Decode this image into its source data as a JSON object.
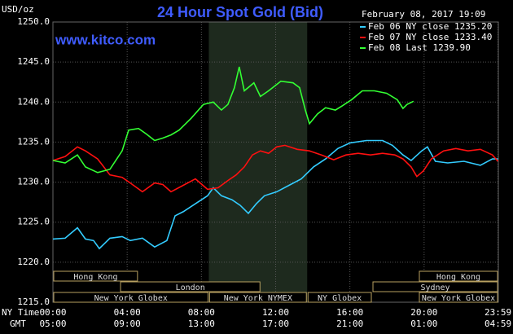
{
  "chart_data": {
    "type": "line",
    "title": "24 Hour Spot Gold (Bid)",
    "y_unit_label": "USD/oz",
    "timestamp": "February 08, 2017 19:09",
    "watermark": "www.kitco.com",
    "x_axis_labels": [
      "NY Time",
      "GMT"
    ],
    "xlim": [
      0,
      24
    ],
    "xticks": [
      {
        "value": 0,
        "label": "00:00"
      },
      {
        "value": 4,
        "label": "04:00"
      },
      {
        "value": 8,
        "label": "08:00"
      },
      {
        "value": 12,
        "label": "12:00"
      },
      {
        "value": 16,
        "label": "16:00"
      },
      {
        "value": 20,
        "label": "20:00"
      },
      {
        "value": 23.98,
        "label": "23:59"
      }
    ],
    "xticks_gmt": [
      "05:00",
      "09:00",
      "13:00",
      "17:00",
      "21:00",
      "01:00",
      "04:59"
    ],
    "ylim": [
      1215,
      1250
    ],
    "yticks": [
      {
        "value": 1215,
        "label": "1215.0"
      },
      {
        "value": 1220,
        "label": "1220.0"
      },
      {
        "value": 1225,
        "label": "1225.0"
      },
      {
        "value": 1230,
        "label": "1230.0"
      },
      {
        "value": 1235,
        "label": "1235.0"
      },
      {
        "value": 1240,
        "label": "1240.0"
      },
      {
        "value": 1245,
        "label": "1245.0"
      },
      {
        "value": 1250,
        "label": "1250.0"
      }
    ],
    "grid": true,
    "legend": "top-right",
    "series": [
      {
        "name": "Feb 06 NY close 1235.20",
        "color": "#33ccff",
        "x": [
          0,
          0.66,
          1.32,
          1.75,
          2.19,
          2.5,
          3.07,
          3.73,
          4.17,
          4.82,
          5.48,
          6.14,
          6.58,
          7.02,
          7.68,
          8.33,
          8.64,
          9.08,
          9.65,
          10.09,
          10.53,
          10.96,
          11.4,
          12.06,
          12.72,
          13.38,
          14.04,
          14.69,
          15.35,
          16.01,
          16.89,
          17.76,
          18.29,
          18.86,
          19.3,
          19.87,
          20.18,
          20.61,
          21.27,
          22.15,
          23.03,
          23.68,
          23.98
        ],
        "values": [
          1222.9,
          1223.0,
          1224.3,
          1222.9,
          1222.7,
          1221.7,
          1223.0,
          1223.2,
          1222.7,
          1223.0,
          1221.9,
          1222.7,
          1225.8,
          1226.3,
          1227.3,
          1228.3,
          1229.3,
          1228.3,
          1227.8,
          1227.1,
          1226.1,
          1227.3,
          1228.3,
          1228.8,
          1229.6,
          1230.4,
          1231.9,
          1232.9,
          1234.2,
          1234.9,
          1235.2,
          1235.2,
          1234.6,
          1233.4,
          1232.7,
          1233.9,
          1234.4,
          1232.6,
          1232.4,
          1232.6,
          1232.1,
          1232.9,
          1232.9
        ]
      },
      {
        "name": "Feb 07 NY close 1233.40",
        "color": "#ff1010",
        "x": [
          0,
          0.66,
          1.32,
          1.75,
          2.41,
          3.07,
          3.73,
          4.17,
          4.82,
          5.48,
          5.92,
          6.36,
          7.02,
          7.68,
          8.33,
          8.9,
          9.43,
          9.87,
          10.31,
          10.75,
          11.18,
          11.62,
          12.06,
          12.5,
          13.16,
          13.82,
          14.47,
          15.13,
          15.79,
          16.45,
          17.11,
          17.76,
          18.42,
          18.86,
          19.3,
          19.61,
          19.96,
          20.39,
          21.05,
          21.71,
          22.37,
          23.03,
          23.68,
          23.98
        ],
        "values": [
          1232.7,
          1233.2,
          1234.4,
          1233.9,
          1232.9,
          1230.9,
          1230.6,
          1229.9,
          1228.8,
          1229.9,
          1229.7,
          1228.8,
          1229.6,
          1230.4,
          1229.1,
          1229.3,
          1230.2,
          1230.9,
          1231.9,
          1233.4,
          1233.9,
          1233.6,
          1234.4,
          1234.6,
          1234.1,
          1233.9,
          1233.4,
          1232.8,
          1233.4,
          1233.6,
          1233.4,
          1233.6,
          1233.4,
          1232.9,
          1231.9,
          1230.7,
          1231.4,
          1232.9,
          1233.9,
          1234.2,
          1233.9,
          1234.1,
          1233.4,
          1232.6
        ]
      },
      {
        "name": "Feb 08 Last 1239.90",
        "color": "#33ff33",
        "x": [
          0,
          0.66,
          1.32,
          1.75,
          2.41,
          3.07,
          3.73,
          4.08,
          4.61,
          5.04,
          5.48,
          5.92,
          6.36,
          6.8,
          7.46,
          8.11,
          8.64,
          9.08,
          9.43,
          9.78,
          10.04,
          10.31,
          10.83,
          11.18,
          11.62,
          12.28,
          12.94,
          13.29,
          13.6,
          13.82,
          14.25,
          14.69,
          15.22,
          15.57,
          16.1,
          16.67,
          17.32,
          17.98,
          18.55,
          18.86,
          19.08,
          19.43
        ],
        "values": [
          1232.7,
          1232.4,
          1233.4,
          1231.9,
          1231.2,
          1231.6,
          1233.9,
          1236.5,
          1236.7,
          1236.0,
          1235.2,
          1235.5,
          1235.9,
          1236.5,
          1238.0,
          1239.7,
          1240.0,
          1239.0,
          1239.7,
          1241.8,
          1244.4,
          1241.4,
          1242.4,
          1240.7,
          1241.4,
          1242.6,
          1242.4,
          1241.8,
          1239.0,
          1237.3,
          1238.5,
          1239.3,
          1239.0,
          1239.5,
          1240.3,
          1241.4,
          1241.4,
          1241.1,
          1240.3,
          1239.2,
          1239.7,
          1240.1
        ]
      }
    ],
    "sessions": [
      {
        "label": "Hong Kong",
        "row": 1,
        "start": 0,
        "end": 4.6
      },
      {
        "label": "Hong Kong",
        "row": 1,
        "start": 19.7,
        "end": 24
      },
      {
        "label": "London",
        "row": 2,
        "start": 3.6,
        "end": 11.2
      },
      {
        "label": "Sydney",
        "row": 2,
        "start": 17.2,
        "end": 24
      },
      {
        "label": "New York Globex",
        "row": 3,
        "start": 0,
        "end": 8.4
      },
      {
        "label": "New York NYMEX",
        "row": 3,
        "start": 8.4,
        "end": 13.7,
        "highlight": true
      },
      {
        "label": "NY Globex",
        "row": 3,
        "start": 13.7,
        "end": 17.2
      },
      {
        "label": "New York Globex",
        "row": 3,
        "start": 19.7,
        "end": 24
      }
    ]
  }
}
